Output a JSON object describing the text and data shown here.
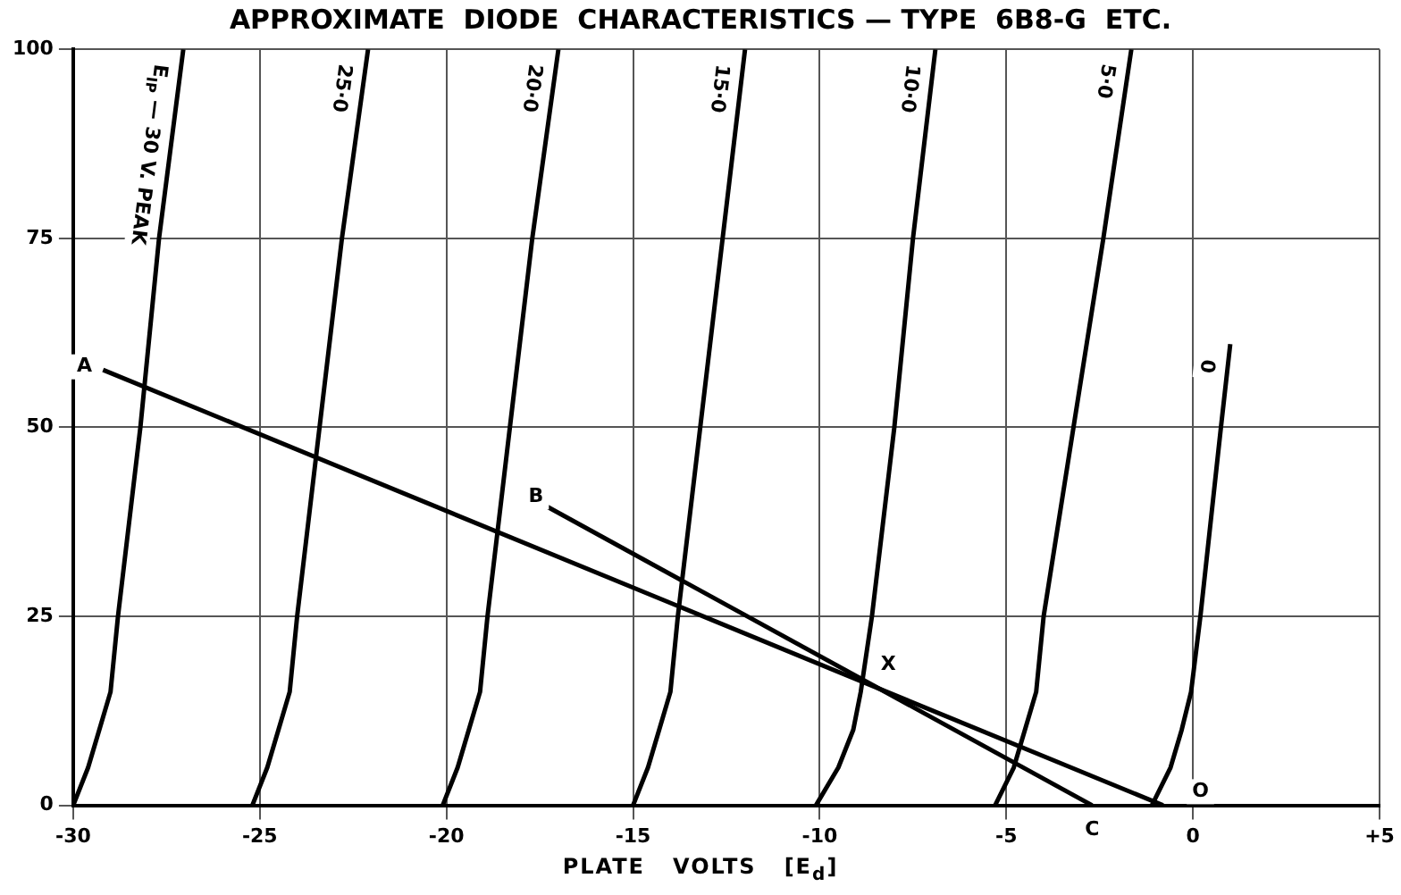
{
  "chart_data": {
    "type": "line",
    "title": "APPROXIMATE  DIODE  CHARACTERISTICS — TYPE  6B8-G  ETC.",
    "xlabel": "PLATE   VOLTS   [E$_{d}$]",
    "xlim": [
      -30,
      5
    ],
    "xticks": [
      -30,
      -25,
      -20,
      -15,
      -10,
      -5,
      0,
      {
        "value": 5,
        "label": "+5"
      }
    ],
    "ylim": [
      0,
      100
    ],
    "yticks": [
      0,
      25,
      50,
      75,
      100
    ],
    "grid": true,
    "legend": false,
    "marker": "none",
    "line_style": "solid",
    "series": [
      {
        "name": "E$_{IP}$ — 30 V. PEAK",
        "color": "#000000",
        "x": [
          -30,
          -29.6,
          -29.3,
          -29.0,
          -28.8,
          -28.2,
          -27.7,
          -27.05
        ],
        "values": [
          0,
          5,
          10,
          15,
          25,
          50,
          75,
          100
        ]
      },
      {
        "name": "25·0",
        "color": "#000000",
        "x": [
          -25.2,
          -24.8,
          -24.5,
          -24.2,
          -24.0,
          -23.4,
          -22.8,
          -22.1
        ],
        "values": [
          0,
          5,
          10,
          15,
          25,
          50,
          75,
          100
        ]
      },
      {
        "name": "20·0",
        "color": "#000000",
        "x": [
          -20.1,
          -19.7,
          -19.4,
          -19.1,
          -18.9,
          -18.3,
          -17.7,
          -17.0
        ],
        "values": [
          0,
          5,
          10,
          15,
          25,
          50,
          75,
          100
        ]
      },
      {
        "name": "15·0",
        "color": "#000000",
        "x": [
          -15.0,
          -14.6,
          -14.3,
          -14.0,
          -13.8,
          -13.2,
          -12.6,
          -12.0
        ],
        "values": [
          0,
          5,
          10,
          15,
          25,
          50,
          75,
          100
        ]
      },
      {
        "name": "10·0",
        "color": "#000000",
        "x": [
          -10.1,
          -9.5,
          -9.1,
          -8.9,
          -8.6,
          -8.0,
          -7.5,
          -6.9
        ],
        "values": [
          0,
          5,
          10,
          15,
          25,
          50,
          75,
          100
        ]
      },
      {
        "name": "5·0",
        "color": "#000000",
        "x": [
          -5.3,
          -4.8,
          -4.5,
          -4.2,
          -4.0,
          -3.2,
          -2.4,
          -1.65
        ],
        "values": [
          0,
          5,
          10,
          15,
          25,
          50,
          75,
          100
        ]
      },
      {
        "name": "0",
        "color": "#000000",
        "x": [
          -1.1,
          -0.6,
          -0.3,
          -0.05,
          0.2,
          0.75,
          1.0
        ],
        "values": [
          0,
          5,
          10,
          15,
          25,
          50,
          61
        ]
      },
      {
        "color": "#000000",
        "x": [
          -29.2,
          -0.8
        ],
        "values": [
          57.6,
          0
        ]
      },
      {
        "color": "#000000",
        "x": [
          -17.3,
          -2.7
        ],
        "values": [
          39.5,
          0
        ]
      }
    ],
    "annotations": [
      {
        "text": "A",
        "x": -29.7,
        "y": 58
      },
      {
        "text": "B",
        "x": -17.6,
        "y": 40.8
      },
      {
        "text": "X",
        "x": -8.16,
        "y": 18.6
      },
      {
        "text": "C",
        "x": -2.7,
        "y": 0
      },
      {
        "text": "O",
        "x": 0.2,
        "y": 1.8
      }
    ]
  }
}
